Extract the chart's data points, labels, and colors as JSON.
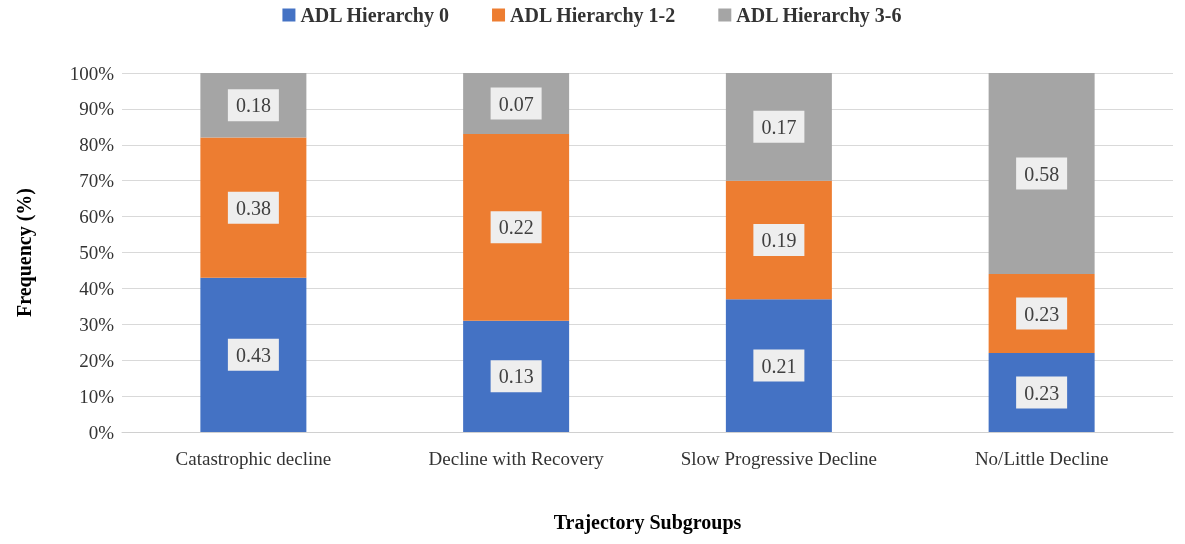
{
  "chart_data": {
    "type": "bar",
    "stacked": true,
    "xlabel": "Trajectory Subgroups",
    "ylabel": "Frequency (%)",
    "categories": [
      "Catastrophic decline",
      "Decline with Recovery",
      "Slow Progressive Decline",
      "No/Little Decline"
    ],
    "series": [
      {
        "name": "ADL Hierarchy 0",
        "color": "#4472c4",
        "values": [
          43,
          31,
          37,
          22
        ]
      },
      {
        "name": "ADL Hierarchy 1-2",
        "color": "#ed7d31",
        "values": [
          39,
          52,
          33,
          22
        ]
      },
      {
        "name": "ADL Hierarchy 3-6",
        "color": "#a5a5a5",
        "values": [
          18,
          17,
          30,
          56
        ]
      }
    ],
    "annotations": [
      "0.43",
      "0.38",
      "0.18",
      "0.13",
      "0.22",
      "0.07",
      "0.21",
      "0.19",
      "0.17",
      "0.23",
      "0.23",
      "0.58"
    ],
    "ylim": [
      0,
      100
    ],
    "yticks": [
      {
        "value": 0,
        "label": "0%"
      },
      {
        "value": 10,
        "label": "10%"
      },
      {
        "value": 20,
        "label": "20%"
      },
      {
        "value": 30,
        "label": "30%"
      },
      {
        "value": 40,
        "label": "40%"
      },
      {
        "value": 50,
        "label": "50%"
      },
      {
        "value": 60,
        "label": "60%"
      },
      {
        "value": 70,
        "label": "70%"
      },
      {
        "value": 80,
        "label": "80%"
      },
      {
        "value": 90,
        "label": "90%"
      },
      {
        "value": 100,
        "label": "100%"
      }
    ],
    "grid": "y",
    "legend": "top"
  }
}
